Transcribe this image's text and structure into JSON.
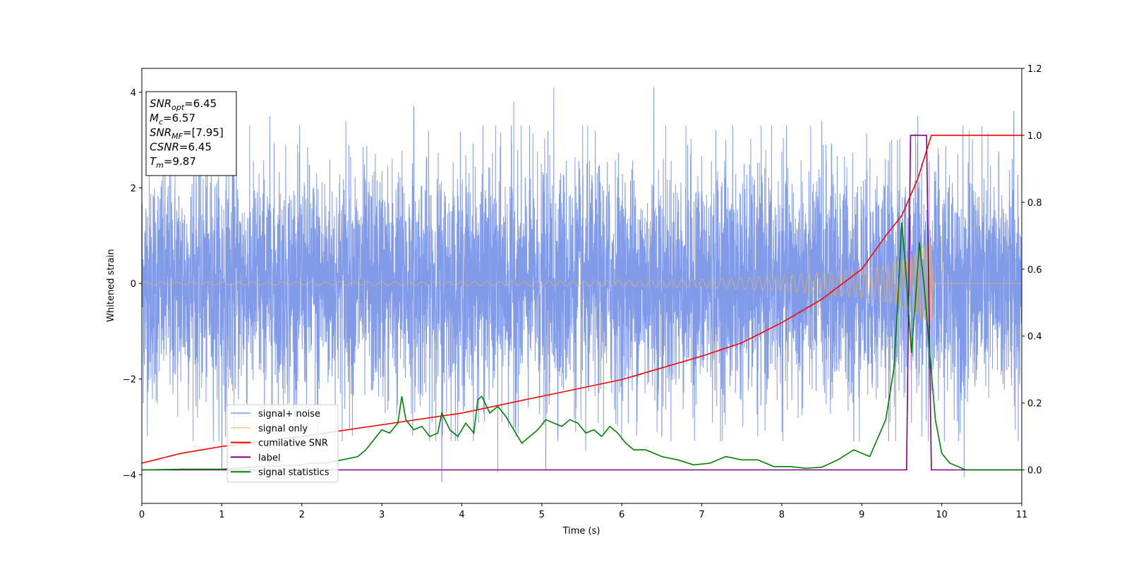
{
  "chart_data": {
    "type": "line",
    "xlabel": "Time (s)",
    "ylabel": "Whitened strain",
    "xlim": [
      0,
      11
    ],
    "ylim_left": [
      -4.6,
      4.5
    ],
    "ylim_right": [
      -0.1,
      1.2
    ],
    "x_ticks": [
      0,
      1,
      2,
      3,
      4,
      5,
      6,
      7,
      8,
      9,
      10,
      11
    ],
    "y_ticks_left": [
      -4,
      -2,
      0,
      2,
      4
    ],
    "y_ticks_right": [
      0.0,
      0.2,
      0.4,
      0.6,
      0.8,
      1.0,
      1.2
    ],
    "info_box": [
      {
        "main": "SNR",
        "sub": "opt",
        "value": "=6.45"
      },
      {
        "main": "M",
        "sub": "c",
        "value": "=6.57"
      },
      {
        "main": "SNR",
        "sub": "MF",
        "value": "=[7.95]"
      },
      {
        "main": "CSNR",
        "sub": "",
        "value": "=6.45"
      },
      {
        "main": "T",
        "sub": "m",
        "value": "=9.87"
      }
    ],
    "legend_position": "lower-left",
    "merger_time": 9.87,
    "series": [
      {
        "name": "signal+ noise",
        "axis": "left",
        "color": "#7b96e8",
        "description_kind": "noise band",
        "typical_amplitude": 2.1,
        "peak_points": [
          [
            0.65,
            2.4
          ],
          [
            1.6,
            3.5
          ],
          [
            2.55,
            3.4
          ],
          [
            3.4,
            3.7
          ],
          [
            4.65,
            3.8
          ],
          [
            5.15,
            4.1
          ],
          [
            6.4,
            4.1
          ],
          [
            7.3,
            3.0
          ],
          [
            8.5,
            3.4
          ],
          [
            9.7,
            3.5
          ],
          [
            10.2,
            2.7
          ],
          [
            10.9,
            3.6
          ]
        ],
        "trough_points": [
          [
            1.0,
            -3.9
          ],
          [
            2.2,
            -3.4
          ],
          [
            3.75,
            -4.15
          ],
          [
            4.45,
            -3.95
          ],
          [
            5.05,
            -3.9
          ],
          [
            5.55,
            -3.5
          ],
          [
            6.5,
            -3.2
          ],
          [
            7.7,
            -3.2
          ],
          [
            8.9,
            -3.3
          ],
          [
            9.75,
            -3.2
          ],
          [
            10.28,
            -4.05
          ]
        ]
      },
      {
        "name": "signal only",
        "axis": "left",
        "color": "#f4b350",
        "description_kind": "chirp",
        "envelope": [
          [
            0,
            0.03
          ],
          [
            4,
            0.04
          ],
          [
            6,
            0.06
          ],
          [
            7,
            0.09
          ],
          [
            7.5,
            0.12
          ],
          [
            8,
            0.16
          ],
          [
            8.5,
            0.22
          ],
          [
            9,
            0.3
          ],
          [
            9.3,
            0.38
          ],
          [
            9.6,
            0.55
          ],
          [
            9.8,
            0.8
          ],
          [
            9.87,
            0.9
          ],
          [
            9.9,
            0.0
          ],
          [
            11,
            0.0
          ]
        ]
      },
      {
        "name": "cumilative SNR",
        "axis": "right",
        "color": "#ff0000",
        "points": [
          [
            0,
            0.02
          ],
          [
            0.5,
            0.05
          ],
          [
            1,
            0.07
          ],
          [
            2,
            0.1
          ],
          [
            3,
            0.135
          ],
          [
            4,
            0.17
          ],
          [
            5,
            0.22
          ],
          [
            6,
            0.27
          ],
          [
            7,
            0.34
          ],
          [
            7.5,
            0.38
          ],
          [
            8,
            0.44
          ],
          [
            8.5,
            0.51
          ],
          [
            9,
            0.6
          ],
          [
            9.3,
            0.7
          ],
          [
            9.5,
            0.76
          ],
          [
            9.7,
            0.87
          ],
          [
            9.87,
            1.0
          ],
          [
            11,
            1.0
          ]
        ]
      },
      {
        "name": "label",
        "axis": "right",
        "color": "#800080",
        "points": [
          [
            0,
            0.0
          ],
          [
            9.56,
            0.0
          ],
          [
            9.61,
            1.0
          ],
          [
            9.81,
            1.0
          ],
          [
            9.87,
            0.0
          ],
          [
            11,
            0.0
          ]
        ]
      },
      {
        "name": "signal statistics",
        "axis": "right",
        "color": "#008000",
        "points": [
          [
            0,
            0.0
          ],
          [
            0.5,
            0.002
          ],
          [
            1.0,
            0.002
          ],
          [
            1.5,
            0.01
          ],
          [
            2.0,
            0.015
          ],
          [
            2.1,
            0.02
          ],
          [
            2.3,
            0.02
          ],
          [
            2.5,
            0.03
          ],
          [
            2.7,
            0.04
          ],
          [
            2.8,
            0.06
          ],
          [
            2.9,
            0.09
          ],
          [
            3.0,
            0.12
          ],
          [
            3.1,
            0.11
          ],
          [
            3.2,
            0.14
          ],
          [
            3.25,
            0.22
          ],
          [
            3.3,
            0.15
          ],
          [
            3.4,
            0.12
          ],
          [
            3.5,
            0.13
          ],
          [
            3.6,
            0.1
          ],
          [
            3.7,
            0.11
          ],
          [
            3.75,
            0.17
          ],
          [
            3.85,
            0.12
          ],
          [
            3.95,
            0.1
          ],
          [
            4.05,
            0.14
          ],
          [
            4.15,
            0.11
          ],
          [
            4.2,
            0.21
          ],
          [
            4.25,
            0.22
          ],
          [
            4.35,
            0.17
          ],
          [
            4.45,
            0.19
          ],
          [
            4.55,
            0.16
          ],
          [
            4.65,
            0.12
          ],
          [
            4.75,
            0.08
          ],
          [
            4.85,
            0.1
          ],
          [
            4.95,
            0.12
          ],
          [
            5.05,
            0.15
          ],
          [
            5.15,
            0.14
          ],
          [
            5.25,
            0.13
          ],
          [
            5.35,
            0.15
          ],
          [
            5.45,
            0.14
          ],
          [
            5.55,
            0.11
          ],
          [
            5.65,
            0.12
          ],
          [
            5.75,
            0.1
          ],
          [
            5.85,
            0.13
          ],
          [
            5.95,
            0.11
          ],
          [
            6.05,
            0.08
          ],
          [
            6.15,
            0.06
          ],
          [
            6.3,
            0.06
          ],
          [
            6.5,
            0.04
          ],
          [
            6.7,
            0.03
          ],
          [
            6.9,
            0.015
          ],
          [
            7.1,
            0.02
          ],
          [
            7.3,
            0.04
          ],
          [
            7.5,
            0.03
          ],
          [
            7.7,
            0.03
          ],
          [
            7.9,
            0.01
          ],
          [
            8.1,
            0.01
          ],
          [
            8.3,
            0.005
          ],
          [
            8.5,
            0.008
          ],
          [
            8.7,
            0.03
          ],
          [
            8.9,
            0.06
          ],
          [
            9.1,
            0.04
          ],
          [
            9.3,
            0.15
          ],
          [
            9.4,
            0.3
          ],
          [
            9.45,
            0.5
          ],
          [
            9.5,
            0.74
          ],
          [
            9.55,
            0.6
          ],
          [
            9.62,
            0.35
          ],
          [
            9.67,
            0.5
          ],
          [
            9.72,
            0.68
          ],
          [
            9.78,
            0.55
          ],
          [
            9.85,
            0.35
          ],
          [
            9.92,
            0.15
          ],
          [
            10.0,
            0.05
          ],
          [
            10.1,
            0.02
          ],
          [
            10.3,
            0.0
          ],
          [
            11,
            0.0
          ]
        ]
      }
    ]
  }
}
